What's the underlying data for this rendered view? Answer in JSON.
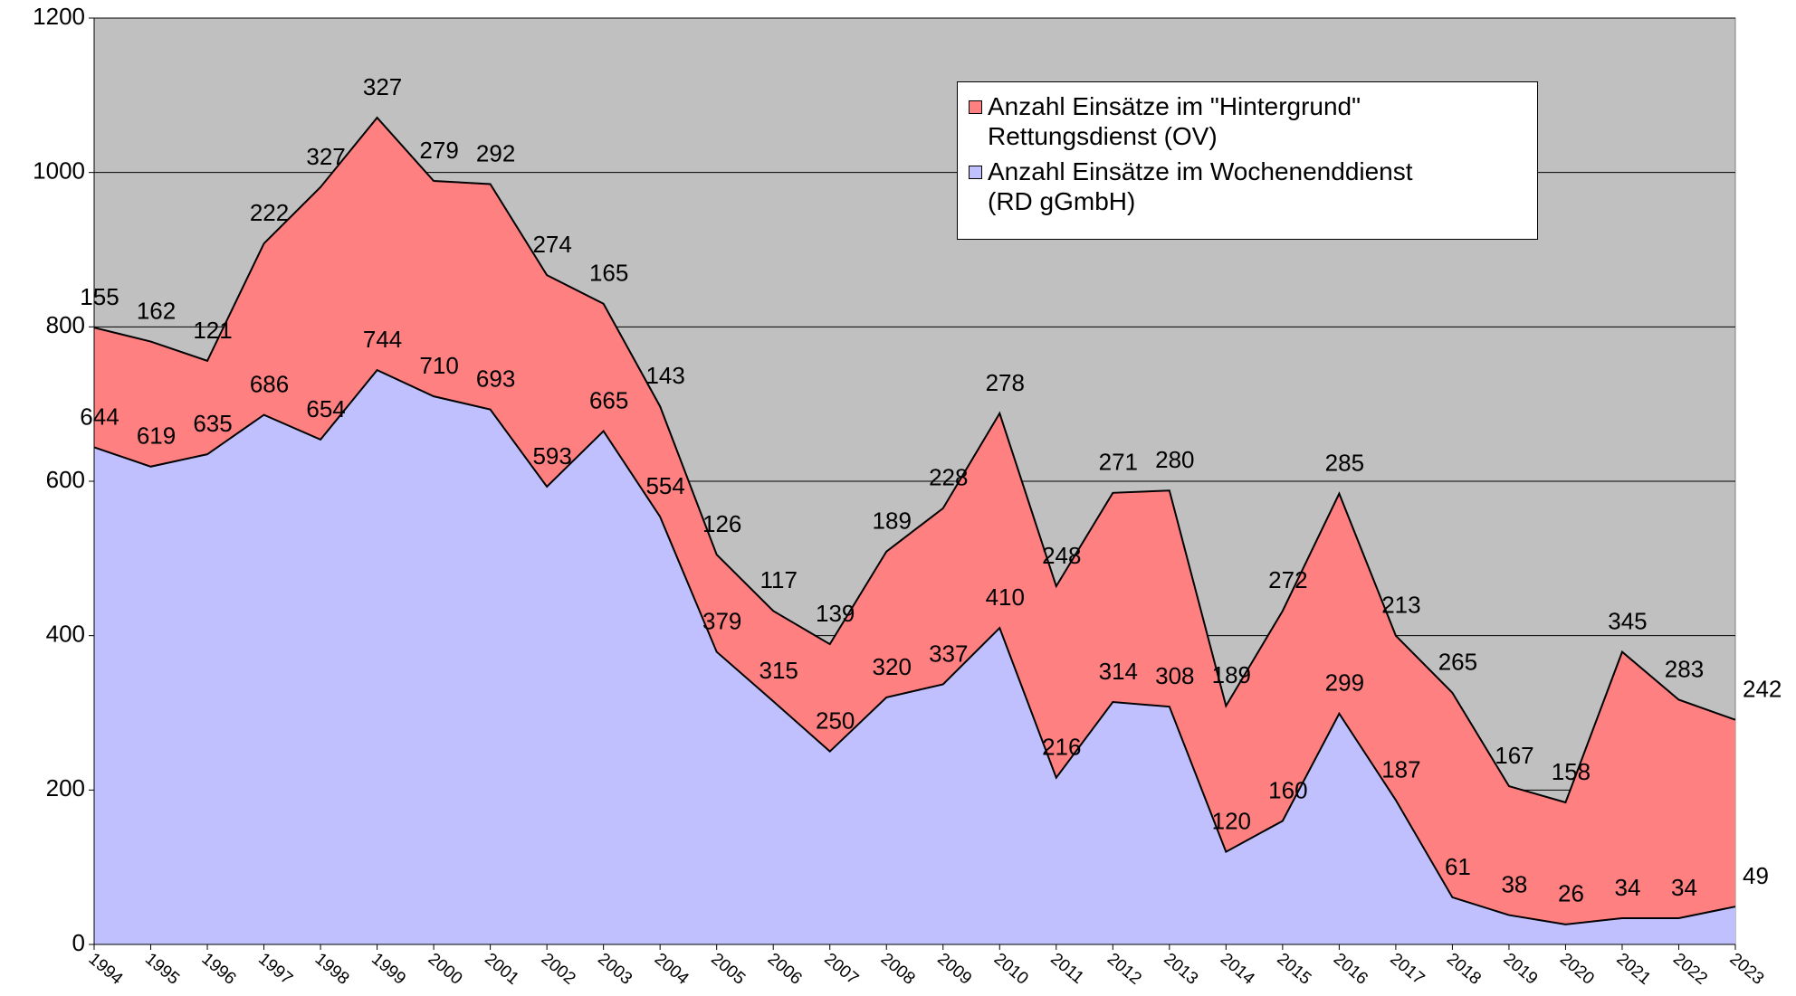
{
  "chart_data": {
    "type": "stacked_area",
    "categories": [
      "1994",
      "1995",
      "1996",
      "1997",
      "1998",
      "1999",
      "2000",
      "2001",
      "2002",
      "2003",
      "2004",
      "2005",
      "2006",
      "2007",
      "2008",
      "2009",
      "2010",
      "2011",
      "2012",
      "2013",
      "2014",
      "2015",
      "2016",
      "2017",
      "2018",
      "2019",
      "2020",
      "2021",
      "2022",
      "2023"
    ],
    "series": [
      {
        "name": "Anzahl Einsätze im Wochenenddienst (RD gGmbH)",
        "color": "#c0c0ff",
        "values": [
          644,
          619,
          635,
          686,
          654,
          744,
          710,
          693,
          593,
          665,
          554,
          379,
          315,
          250,
          320,
          337,
          410,
          216,
          314,
          308,
          120,
          160,
          299,
          187,
          61,
          38,
          26,
          34,
          34,
          49
        ]
      },
      {
        "name": "Anzahl Einsätze im \"Hintergrund\" Rettungsdienst (OV)",
        "color": "#ff8080",
        "values": [
          155,
          162,
          121,
          222,
          327,
          327,
          279,
          292,
          274,
          165,
          143,
          126,
          117,
          139,
          189,
          228,
          278,
          248,
          271,
          280,
          189,
          272,
          285,
          213,
          265,
          167,
          158,
          345,
          283,
          242
        ]
      }
    ],
    "ylim": [
      0,
      1200
    ],
    "yticks": [
      0,
      200,
      400,
      600,
      800,
      1000,
      1200
    ],
    "grid": true,
    "legend": "top-right"
  }
}
